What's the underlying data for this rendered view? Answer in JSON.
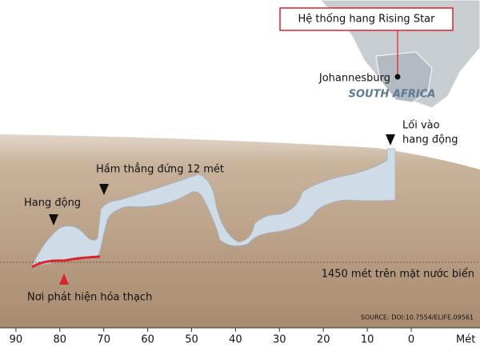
{
  "map": {
    "label_box": "Hệ thống hang Rising Star",
    "city": "Johannesburg",
    "country": "SOUTH AFRICA"
  },
  "annotations": {
    "entrance": [
      "Lối vào",
      "hang động"
    ],
    "shaft": "Hầm thẳng đứng 12 mét",
    "cave": "Hang động",
    "fossil_site": "Nơi phát hiện hóa thạch",
    "elevation": "1450 mét trên mặt nước biển",
    "source": "SOURCE: DOI:10.7554/ELIFE.09561"
  },
  "axis": {
    "label": "Mét",
    "ticks": [
      90,
      80,
      70,
      60,
      50,
      40,
      30,
      20,
      10,
      0
    ]
  }
}
